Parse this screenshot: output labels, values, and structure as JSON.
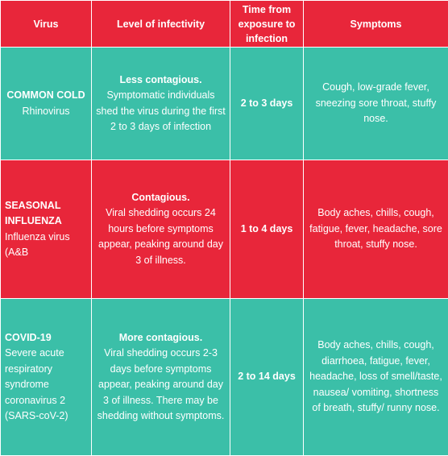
{
  "header": [
    "Virus",
    "Level of infectivity",
    "Time from exposure to infection",
    "Symptoms"
  ],
  "rows": [
    {
      "virus": {
        "title": "COMMON COLD",
        "text": "Rhinovirus"
      },
      "infectivity": {
        "title": "Less contagious.",
        "text": "Symptomatic individuals shed the virus during the first 2 to 3 days of infection"
      },
      "time": "2 to 3 days",
      "symptoms": "Cough, low-grade fever, sneezing sore throat, stuffy nose."
    },
    {
      "virus": {
        "title": "SEASONAL INFLUENZA",
        "text": "Influenza virus (A&B"
      },
      "infectivity": {
        "title": "Contagious.",
        "text": "Viral shedding occurs 24 hours before symptoms appear, peaking around day 3 of illness."
      },
      "time": "1 to 4 days",
      "symptoms": "Body aches, chills, cough, fatigue, fever, headache, sore throat, stuffy nose."
    },
    {
      "virus": {
        "title": "COVID-19",
        "text": "Severe acute respiratory syndrome coronavirus 2 (SARS-coV-2)"
      },
      "infectivity": {
        "title": "More contagious.",
        "text": "Viral shedding occurs 2-3 days before symptoms appear, peaking around day 3 of illness. There may be shedding without symptoms."
      },
      "time": "2 to 14 days",
      "symptoms": "Body aches, chills, cough, diarrhoea, fatigue, fever, headache, loss of smell/taste, nausea/ vomiting, shortness of breath, stuffy/ runny nose."
    }
  ]
}
